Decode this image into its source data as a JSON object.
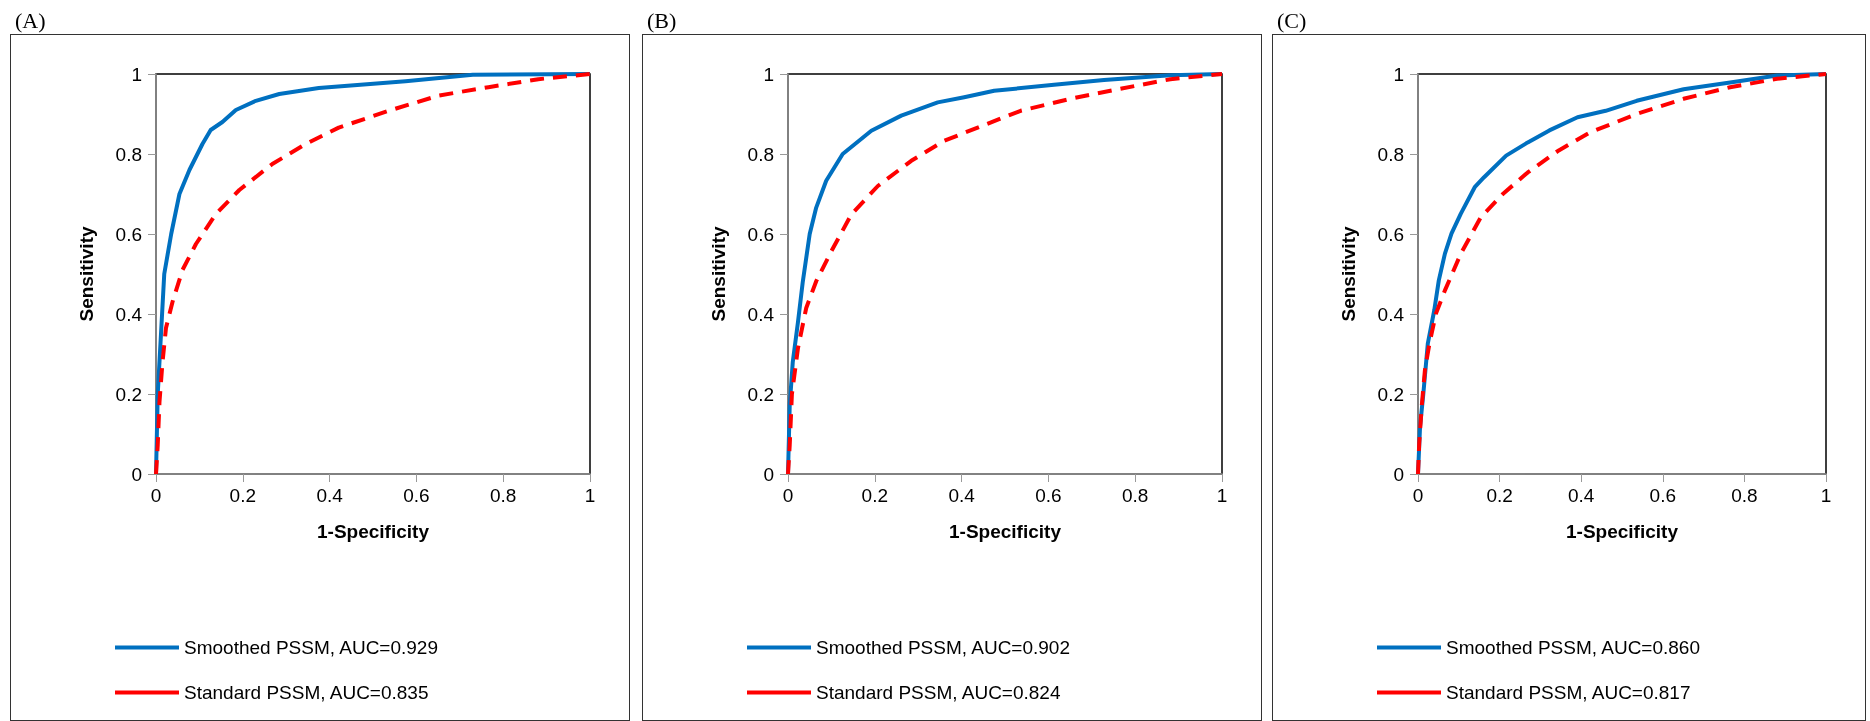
{
  "chart_data": [
    {
      "type": "line",
      "title": "(A)",
      "xlabel": "1-Specificity",
      "ylabel": "Sensitivity",
      "xlim": [
        0,
        1
      ],
      "ylim": [
        0,
        1
      ],
      "xticks": [
        0,
        0.2,
        0.4,
        0.6,
        0.8,
        1
      ],
      "yticks": [
        0,
        0.2,
        0.4,
        0.6,
        0.8,
        1
      ],
      "grid": false,
      "legend": "bottom",
      "marker": "none",
      "series": [
        {
          "name": "Smoothed PSSM, AUC=0.929",
          "color": "#0070c0",
          "line_style": "solid",
          "x": [
            0,
            0.004,
            0.009,
            0.019,
            0.035,
            0.054,
            0.077,
            0.107,
            0.126,
            0.153,
            0.184,
            0.23,
            0.284,
            0.375,
            0.575,
            0.73,
            1
          ],
          "values": [
            0,
            0.2,
            0.3,
            0.5,
            0.6,
            0.7,
            0.76,
            0.825,
            0.86,
            0.88,
            0.91,
            0.933,
            0.95,
            0.965,
            0.982,
            0.998,
            1
          ]
        },
        {
          "name": "Standard PSSM, AUC=0.835",
          "color": "#ff0000",
          "line_style": "dashed",
          "x": [
            0,
            0.004,
            0.008,
            0.015,
            0.023,
            0.038,
            0.061,
            0.092,
            0.138,
            0.192,
            0.268,
            0.345,
            0.421,
            0.536,
            0.651,
            0.766,
            0.881,
            1
          ],
          "values": [
            0,
            0.073,
            0.18,
            0.28,
            0.365,
            0.43,
            0.51,
            0.575,
            0.65,
            0.71,
            0.775,
            0.825,
            0.866,
            0.908,
            0.946,
            0.967,
            0.987,
            1
          ]
        }
      ]
    },
    {
      "type": "line",
      "title": "(B)",
      "xlabel": "1-Specificity",
      "ylabel": "Sensitivity",
      "xlim": [
        0,
        1
      ],
      "ylim": [
        0,
        1
      ],
      "xticks": [
        0,
        0.2,
        0.4,
        0.6,
        0.8,
        1
      ],
      "yticks": [
        0,
        0.2,
        0.4,
        0.6,
        0.8,
        1
      ],
      "grid": false,
      "legend": "bottom",
      "marker": "none",
      "series": [
        {
          "name": "Smoothed PSSM, AUC=0.902",
          "color": "#0070c0",
          "line_style": "solid",
          "x": [
            0,
            0.004,
            0.011,
            0.023,
            0.034,
            0.05,
            0.065,
            0.088,
            0.126,
            0.192,
            0.261,
            0.345,
            0.406,
            0.475,
            0.613,
            0.728,
            0.881,
            1
          ],
          "values": [
            0,
            0.173,
            0.28,
            0.38,
            0.48,
            0.6,
            0.666,
            0.733,
            0.8,
            0.858,
            0.896,
            0.929,
            0.942,
            0.958,
            0.973,
            0.985,
            0.997,
            1
          ]
        },
        {
          "name": "Standard PSSM, AUC=0.824",
          "color": "#ff0000",
          "line_style": "dashed",
          "x": [
            0,
            0.004,
            0.009,
            0.023,
            0.042,
            0.065,
            0.1,
            0.146,
            0.207,
            0.284,
            0.36,
            0.437,
            0.536,
            0.651,
            0.766,
            0.881,
            1
          ],
          "values": [
            0,
            0.073,
            0.2,
            0.315,
            0.415,
            0.482,
            0.557,
            0.649,
            0.72,
            0.783,
            0.833,
            0.866,
            0.908,
            0.938,
            0.963,
            0.987,
            1
          ]
        }
      ]
    },
    {
      "type": "line",
      "title": "(C)",
      "xlabel": "1-Specificity",
      "ylabel": "Sensitivity",
      "xlim": [
        0,
        1
      ],
      "ylim": [
        0,
        1
      ],
      "xticks": [
        0,
        0.2,
        0.4,
        0.6,
        0.8,
        1
      ],
      "yticks": [
        0,
        0.2,
        0.4,
        0.6,
        0.8,
        1
      ],
      "grid": false,
      "legend": "bottom",
      "marker": "none",
      "series": [
        {
          "name": "Smoothed PSSM, AUC=0.860",
          "color": "#0070c0",
          "line_style": "solid",
          "x": [
            0,
            0.005,
            0.013,
            0.024,
            0.04,
            0.051,
            0.066,
            0.082,
            0.105,
            0.139,
            0.162,
            0.216,
            0.269,
            0.322,
            0.391,
            0.46,
            0.536,
            0.651,
            0.765,
            0.88,
            1
          ],
          "values": [
            0,
            0.118,
            0.2,
            0.326,
            0.41,
            0.484,
            0.551,
            0.601,
            0.651,
            0.717,
            0.742,
            0.796,
            0.829,
            0.859,
            0.892,
            0.908,
            0.933,
            0.962,
            0.979,
            0.996,
            1
          ]
        },
        {
          "name": "Standard PSSM, AUC=0.817",
          "color": "#ff0000",
          "line_style": "dashed",
          "x": [
            0,
            0.003,
            0.009,
            0.017,
            0.028,
            0.044,
            0.066,
            0.105,
            0.154,
            0.208,
            0.269,
            0.345,
            0.422,
            0.536,
            0.651,
            0.765,
            0.88,
            1
          ],
          "values": [
            0,
            0.077,
            0.168,
            0.26,
            0.326,
            0.401,
            0.459,
            0.551,
            0.642,
            0.7,
            0.754,
            0.809,
            0.854,
            0.9,
            0.938,
            0.967,
            0.988,
            1
          ]
        }
      ]
    }
  ]
}
